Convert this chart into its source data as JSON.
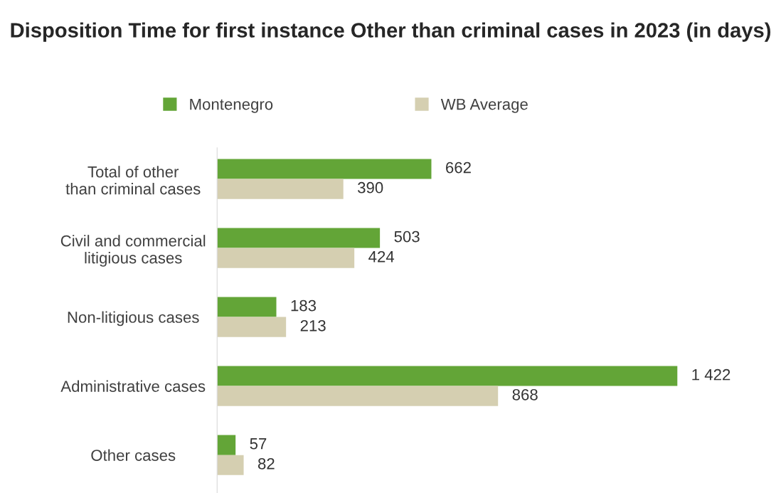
{
  "chart_data": {
    "type": "bar",
    "orientation": "horizontal",
    "title": "Disposition Time for first instance Other than criminal cases in 2023 (in days)",
    "categories": [
      "Total of other than criminal cases",
      "Civil and commercial litigious cases",
      "Non-litigious cases",
      "Administrative cases",
      "Other cases"
    ],
    "series": [
      {
        "name": "Montenegro",
        "color": "#63a537",
        "values": [
          662,
          503,
          183,
          1422,
          57
        ],
        "value_labels": [
          "662",
          "503",
          "183",
          "1 422",
          "57"
        ]
      },
      {
        "name": "WB Average",
        "color": "#d5cfb1",
        "values": [
          390,
          424,
          213,
          868,
          82
        ],
        "value_labels": [
          "390",
          "424",
          "213",
          "868",
          "82"
        ]
      }
    ],
    "legend": "top",
    "grid": false
  }
}
